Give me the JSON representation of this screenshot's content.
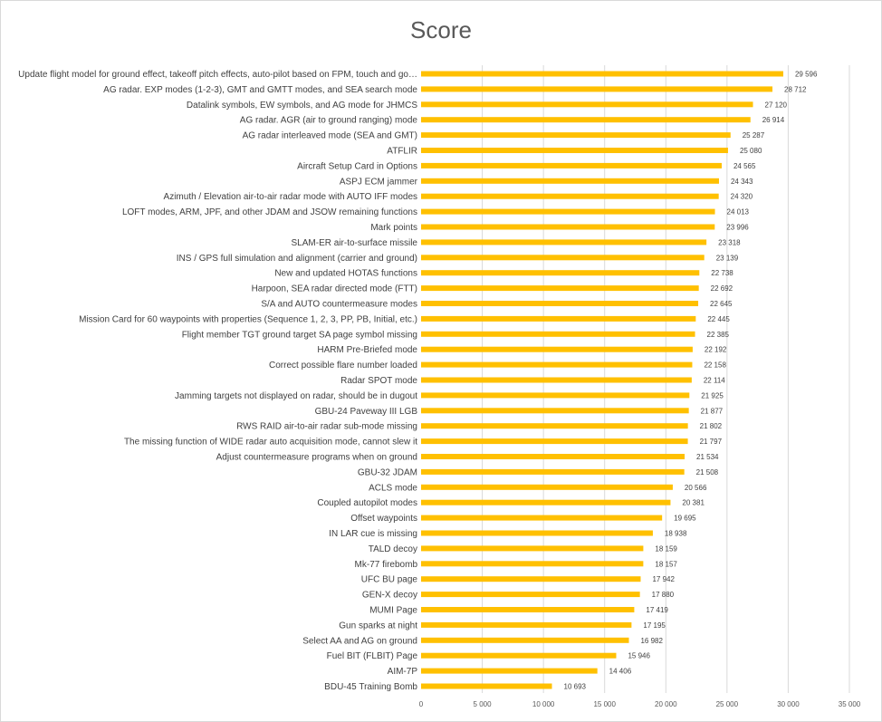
{
  "chart_data": {
    "type": "bar",
    "orientation": "horizontal",
    "title": "Score",
    "bar_color": "#FFC000",
    "xlim": [
      0,
      35000
    ],
    "xticks": [
      0,
      5000,
      10000,
      15000,
      20000,
      25000,
      30000,
      35000
    ],
    "xtick_labels": [
      "0",
      "5 000",
      "10 000",
      "15 000",
      "20 000",
      "25 000",
      "30 000",
      "35 000"
    ],
    "grid": true,
    "categories": [
      "Update flight model for ground effect, takeoff pitch effects, auto-pilot based on FPM, touch and go…",
      "AG radar. EXP modes (1-2-3), GMT and GMTT modes, and SEA search mode",
      "Datalink symbols, EW symbols, and AG mode for JHMCS",
      "AG radar. AGR (air to ground ranging) mode",
      "AG radar interleaved mode (SEA and GMT)",
      "ATFLIR",
      "Aircraft Setup Card in Options",
      "ASPJ ECM jammer",
      "Azimuth / Elevation air-to-air radar mode with AUTO IFF modes",
      "LOFT modes, ARM, JPF, and other JDAM and JSOW remaining functions",
      "Mark points",
      "SLAM-ER air-to-surface missile",
      "INS / GPS full simulation and alignment (carrier and ground)",
      "New and updated HOTAS functions",
      "Harpoon, SEA radar directed mode (FTT)",
      "S/A and AUTO countermeasure modes",
      "Mission Card for 60 waypoints with properties (Sequence 1, 2, 3, PP, PB, Initial, etc.)",
      "Flight member TGT ground target SA page symbol missing",
      "HARM Pre-Briefed mode",
      "Correct possible flare number loaded",
      "Radar SPOT mode",
      "Jamming targets not displayed on radar, should be in dugout",
      "GBU-24 Paveway III LGB",
      "RWS RAID air-to-air radar sub-mode missing",
      "The missing function of WIDE radar auto acquisition mode, cannot slew it",
      "Adjust countermeasure programs when on ground",
      "GBU-32 JDAM",
      "ACLS mode",
      "Coupled autopilot modes",
      "Offset waypoints",
      "IN LAR cue is missing",
      "TALD decoy",
      "Mk-77 firebomb",
      "UFC BU page",
      "GEN-X decoy",
      "MUMI Page",
      "Gun sparks at night",
      "Select AA and AG on ground",
      "Fuel BIT (FLBIT) Page",
      "AIM-7P",
      "BDU-45 Training Bomb"
    ],
    "values": [
      29596,
      28712,
      27120,
      26914,
      25287,
      25080,
      24565,
      24343,
      24320,
      24013,
      23996,
      23318,
      23139,
      22738,
      22692,
      22645,
      22445,
      22385,
      22192,
      22158,
      22114,
      21925,
      21877,
      21802,
      21797,
      21534,
      21508,
      20566,
      20381,
      19695,
      18938,
      18159,
      18157,
      17942,
      17880,
      17419,
      17195,
      16982,
      15946,
      14406,
      10693
    ],
    "value_labels": [
      "29 596",
      "28 712",
      "27 120",
      "26 914",
      "25 287",
      "25 080",
      "24 565",
      "24 343",
      "24 320",
      "24 013",
      "23 996",
      "23 318",
      "23 139",
      "22 738",
      "22 692",
      "22 645",
      "22 445",
      "22 385",
      "22 192",
      "22 158",
      "22 114",
      "21 925",
      "21 877",
      "21 802",
      "21 797",
      "21 534",
      "21 508",
      "20 566",
      "20 381",
      "19 695",
      "18 938",
      "18 159",
      "18 157",
      "17 942",
      "17 880",
      "17 419",
      "17 195",
      "16 982",
      "15 946",
      "14 406",
      "10 693"
    ]
  }
}
